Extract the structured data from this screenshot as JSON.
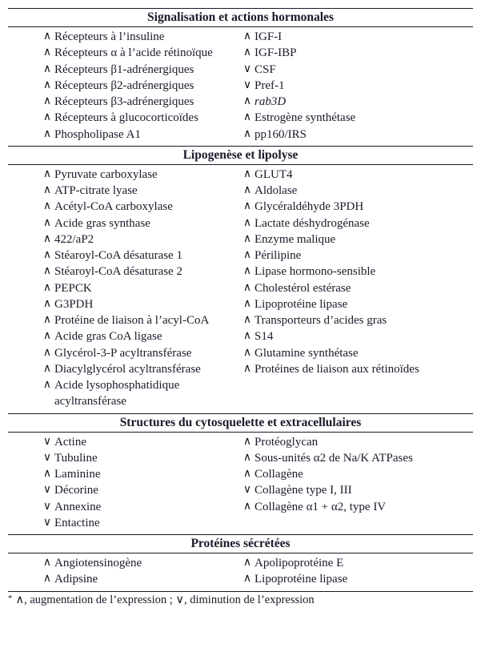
{
  "symbols": {
    "up": "∧",
    "down": "∨"
  },
  "sections": [
    {
      "title": "Signalisation et actions hormonales",
      "rows": [
        {
          "l": {
            "s": "up",
            "t": "Récepteurs à l’insuline"
          },
          "r": {
            "s": "up",
            "t": "IGF-I"
          }
        },
        {
          "l": {
            "s": "up",
            "t": "Récepteurs α à l’acide rétinoïque"
          },
          "r": {
            "s": "up",
            "t": "IGF-IBP"
          }
        },
        {
          "l": {
            "s": "up",
            "t": "Récepteurs β1-adrénergiques"
          },
          "r": {
            "s": "down",
            "t": "CSF"
          }
        },
        {
          "l": {
            "s": "up",
            "t": "Récepteurs β2-adrénergiques"
          },
          "r": {
            "s": "down",
            "t": "Pref-1"
          }
        },
        {
          "l": {
            "s": "up",
            "t": "Récepteurs β3-adrénergiques"
          },
          "r": {
            "s": "up",
            "t": "rab3D",
            "it": true
          }
        },
        {
          "l": {
            "s": "up",
            "t": "Récepteurs à glucocorticoïdes"
          },
          "r": {
            "s": "up",
            "t": "Estrogène synthétase"
          }
        },
        {
          "l": {
            "s": "up",
            "t": "Phospholipase A1"
          },
          "r": {
            "s": "up",
            "t": "pp160/IRS"
          }
        }
      ]
    },
    {
      "title": "Lipogenèse et lipolyse",
      "rows": [
        {
          "l": {
            "s": "up",
            "t": "Pyruvate carboxylase"
          },
          "r": {
            "s": "up",
            "t": "GLUT4"
          }
        },
        {
          "l": {
            "s": "up",
            "t": "ATP-citrate lyase"
          },
          "r": {
            "s": "up",
            "t": "Aldolase"
          }
        },
        {
          "l": {
            "s": "up",
            "t": "Acétyl-CoA carboxylase"
          },
          "r": {
            "s": "up",
            "t": "Glycéraldéhyde 3PDH"
          }
        },
        {
          "l": {
            "s": "up",
            "t": "Acide gras synthase"
          },
          "r": {
            "s": "up",
            "t": "Lactate déshydrogénase"
          }
        },
        {
          "l": {
            "s": "up",
            "t": "422/aP2"
          },
          "r": {
            "s": "up",
            "t": "Enzyme malique"
          }
        },
        {
          "l": {
            "s": "up",
            "t": "Stéaroyl-CoA désaturase 1"
          },
          "r": {
            "s": "up",
            "t": "Périlipine"
          }
        },
        {
          "l": {
            "s": "up",
            "t": "Stéaroyl-CoA désaturase 2"
          },
          "r": {
            "s": "up",
            "t": "Lipase hormono-sensible"
          }
        },
        {
          "l": {
            "s": "up",
            "t": "PEPCK"
          },
          "r": {
            "s": "up",
            "t": "Cholestérol estérase"
          }
        },
        {
          "l": {
            "s": "up",
            "t": "G3PDH"
          },
          "r": {
            "s": "up",
            "t": "Lipoprotéine lipase"
          }
        },
        {
          "l": {
            "s": "up",
            "t": "Protéine de liaison à l’acyl-CoA"
          },
          "r": {
            "s": "up",
            "t": "Transporteurs d’acides gras"
          }
        },
        {
          "l": {
            "s": "up",
            "t": "Acide gras CoA ligase"
          },
          "r": {
            "s": "up",
            "t": "S14"
          }
        },
        {
          "l": {
            "s": "up",
            "t": "Glycérol-3-P acyltransférase"
          },
          "r": {
            "s": "up",
            "t": "Glutamine synthétase"
          }
        },
        {
          "l": {
            "s": "up",
            "t": "Diacylglycérol acyltransférase"
          },
          "r": {
            "s": "up",
            "t": "Protéines de liaison aux rétinoïdes"
          }
        },
        {
          "l": {
            "s": "up",
            "t": "Acide lysophosphatidique acyltransférase"
          },
          "r": null
        }
      ]
    },
    {
      "title": "Structures du cytosquelette et extracellulaires",
      "rows": [
        {
          "l": {
            "s": "down",
            "t": "Actine"
          },
          "r": {
            "s": "up",
            "t": "Protéoglycan"
          }
        },
        {
          "l": {
            "s": "down",
            "t": "Tubuline"
          },
          "r": {
            "s": "up",
            "t": "Sous-unités α2 de Na/K ATPases"
          }
        },
        {
          "l": {
            "s": "up",
            "t": "Laminine"
          },
          "r": {
            "s": "up",
            "t": "Collagène"
          }
        },
        {
          "l": {
            "s": "down",
            "t": "Décorine"
          },
          "r": {
            "s": "down",
            "t": "Collagène type I, III"
          }
        },
        {
          "l": {
            "s": "down",
            "t": "Annexine"
          },
          "r": {
            "s": "up",
            "t": "Collagène α1 + α2, type IV"
          }
        },
        {
          "l": {
            "s": "down",
            "t": "Entactine"
          },
          "r": null
        }
      ]
    },
    {
      "title": "Protéines sécrétées",
      "rows": [
        {
          "l": {
            "s": "up",
            "t": "Angiotensinogène"
          },
          "r": {
            "s": "up",
            "t": "Apolipoprotéine E"
          }
        },
        {
          "l": {
            "s": "up",
            "t": "Adipsine"
          },
          "r": {
            "s": "up",
            "t": "Lipoprotéine lipase"
          }
        }
      ]
    }
  ],
  "footnote": {
    "star": "*",
    "text_parts": [
      "∧, augmentation de l’expression ; ∨, diminution de l’expression"
    ]
  }
}
